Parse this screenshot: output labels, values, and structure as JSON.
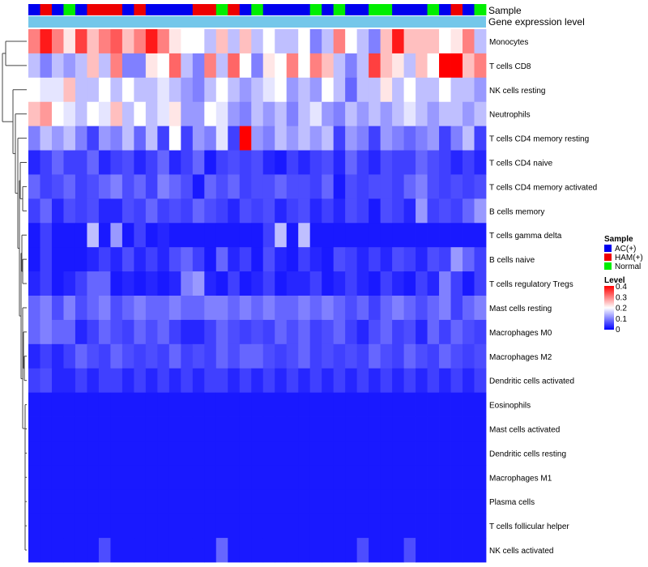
{
  "chart_data": {
    "type": "heatmap",
    "title": "",
    "annotation_tracks": [
      "Sample",
      "Gene expression level"
    ],
    "rows": [
      "Monocytes",
      "T cells CD8",
      "NK cells resting",
      "Neutrophils",
      "T cells CD4 memory resting",
      "T cells CD4 naive",
      "T cells CD4 memory activated",
      "B cells memory",
      "T cells gamma delta",
      "B cells naive",
      "T cells regulatory  Tregs",
      "Mast cells resting",
      "Macrophages M0",
      "Macrophages M2",
      "Dendritic cells activated",
      "Eosinophils",
      "Mast cells activated",
      "Dendritic cells resting",
      "Macrophages M1",
      "Plasma cells",
      "T cells follicular helper",
      "NK cells activated"
    ],
    "samples": [
      "AC(+)",
      "HAM(+)",
      "AC(+)",
      "Normal",
      "AC(+)",
      "HAM(+)",
      "HAM(+)",
      "HAM(+)",
      "AC(+)",
      "HAM(+)",
      "AC(+)",
      "AC(+)",
      "AC(+)",
      "AC(+)",
      "HAM(+)",
      "HAM(+)",
      "Normal",
      "HAM(+)",
      "AC(+)",
      "Normal",
      "AC(+)",
      "AC(+)",
      "AC(+)",
      "AC(+)",
      "Normal",
      "AC(+)",
      "Normal",
      "AC(+)",
      "AC(+)",
      "Normal",
      "Normal",
      "AC(+)",
      "AC(+)",
      "AC(+)",
      "Normal",
      "AC(+)",
      "HAM(+)",
      "AC(+)",
      "Normal"
    ],
    "sample_legend": {
      "title": "Sample",
      "entries": [
        {
          "label": "AC(+)",
          "color": "#0000ee"
        },
        {
          "label": "HAM(+)",
          "color": "#ee0000"
        },
        {
          "label": "Normal",
          "color": "#00ee00"
        }
      ]
    },
    "level_legend": {
      "title": "Level",
      "range": [
        0,
        0.4
      ],
      "ticks": [
        "0.4",
        "0.3",
        "0.2",
        "0.1",
        "0"
      ],
      "colors": [
        "#0000ff",
        "#ffffff",
        "#ff0000"
      ]
    },
    "values": [
      [
        0.3,
        0.38,
        0.3,
        0.22,
        0.35,
        0.25,
        0.3,
        0.33,
        0.25,
        0.3,
        0.38,
        0.3,
        0.22,
        0.2,
        0.2,
        0.15,
        0.25,
        0.15,
        0.25,
        0.15,
        0.2,
        0.15,
        0.15,
        0.2,
        0.1,
        0.15,
        0.3,
        0.2,
        0.15,
        0.1,
        0.25,
        0.38,
        0.25,
        0.25,
        0.25,
        0.2,
        0.22,
        0.3,
        0.15
      ],
      [
        0.15,
        0.1,
        0.15,
        0.12,
        0.15,
        0.25,
        0.15,
        0.3,
        0.1,
        0.1,
        0.22,
        0.2,
        0.32,
        0.15,
        0.1,
        0.3,
        0.15,
        0.32,
        0.2,
        0.1,
        0.22,
        0.2,
        0.3,
        0.2,
        0.3,
        0.25,
        0.15,
        0.1,
        0.15,
        0.35,
        0.25,
        0.22,
        0.15,
        0.25,
        0.2,
        0.4,
        0.4,
        0.25,
        0.3
      ],
      [
        0.2,
        0.18,
        0.18,
        0.25,
        0.15,
        0.15,
        0.2,
        0.15,
        0.2,
        0.15,
        0.15,
        0.18,
        0.15,
        0.12,
        0.1,
        0.15,
        0.2,
        0.15,
        0.12,
        0.15,
        0.18,
        0.2,
        0.12,
        0.15,
        0.12,
        0.2,
        0.15,
        0.08,
        0.15,
        0.15,
        0.22,
        0.15,
        0.2,
        0.15,
        0.15,
        0.2,
        0.15,
        0.15,
        0.12
      ],
      [
        0.25,
        0.28,
        0.2,
        0.18,
        0.15,
        0.2,
        0.18,
        0.25,
        0.15,
        0.2,
        0.15,
        0.18,
        0.22,
        0.12,
        0.12,
        0.2,
        0.18,
        0.12,
        0.1,
        0.15,
        0.12,
        0.15,
        0.1,
        0.15,
        0.18,
        0.12,
        0.1,
        0.15,
        0.12,
        0.15,
        0.12,
        0.15,
        0.18,
        0.15,
        0.12,
        0.15,
        0.15,
        0.12,
        0.15
      ],
      [
        0.1,
        0.15,
        0.12,
        0.15,
        0.1,
        0.05,
        0.12,
        0.1,
        0.15,
        0.08,
        0.15,
        0.05,
        0.2,
        0.05,
        0.12,
        0.1,
        0.18,
        0.05,
        0.4,
        0.12,
        0.1,
        0.15,
        0.12,
        0.15,
        0.12,
        0.15,
        0.05,
        0.12,
        0.1,
        0.05,
        0.12,
        0.1,
        0.08,
        0.1,
        0.12,
        0.05,
        0.1,
        0.15,
        0.05
      ],
      [
        0.03,
        0.05,
        0.08,
        0.05,
        0.05,
        0.08,
        0.03,
        0.05,
        0.06,
        0.03,
        0.05,
        0.08,
        0.03,
        0.05,
        0.08,
        0.02,
        0.05,
        0.06,
        0.05,
        0.06,
        0.03,
        0.02,
        0.05,
        0.03,
        0.05,
        0.06,
        0.03,
        0.08,
        0.05,
        0.03,
        0.06,
        0.05,
        0.05,
        0.08,
        0.06,
        0.05,
        0.03,
        0.05,
        0.03
      ],
      [
        0.08,
        0.05,
        0.06,
        0.08,
        0.05,
        0.06,
        0.08,
        0.1,
        0.06,
        0.08,
        0.05,
        0.1,
        0.08,
        0.06,
        0.02,
        0.08,
        0.06,
        0.08,
        0.05,
        0.06,
        0.06,
        0.08,
        0.06,
        0.06,
        0.05,
        0.08,
        0.02,
        0.06,
        0.05,
        0.06,
        0.06,
        0.05,
        0.08,
        0.1,
        0.06,
        0.05,
        0.06,
        0.05,
        0.06
      ],
      [
        0.05,
        0.08,
        0.03,
        0.06,
        0.05,
        0.06,
        0.03,
        0.03,
        0.06,
        0.05,
        0.08,
        0.05,
        0.06,
        0.05,
        0.08,
        0.06,
        0.05,
        0.03,
        0.06,
        0.05,
        0.06,
        0.03,
        0.05,
        0.06,
        0.03,
        0.05,
        0.03,
        0.06,
        0.05,
        0.02,
        0.06,
        0.05,
        0.03,
        0.12,
        0.05,
        0.06,
        0.05,
        0.08,
        0.12
      ],
      [
        0.02,
        0.05,
        0.02,
        0.02,
        0.02,
        0.15,
        0.02,
        0.12,
        0.02,
        0.05,
        0.02,
        0.03,
        0.02,
        0.02,
        0.02,
        0.02,
        0.02,
        0.02,
        0.02,
        0.02,
        0.05,
        0.15,
        0.02,
        0.15,
        0.02,
        0.02,
        0.02,
        0.02,
        0.02,
        0.02,
        0.02,
        0.02,
        0.02,
        0.02,
        0.02,
        0.02,
        0.02,
        0.02,
        0.02
      ],
      [
        0.02,
        0.05,
        0.02,
        0.02,
        0.02,
        0.03,
        0.05,
        0.03,
        0.06,
        0.03,
        0.05,
        0.03,
        0.06,
        0.08,
        0.05,
        0.02,
        0.08,
        0.03,
        0.05,
        0.02,
        0.06,
        0.03,
        0.02,
        0.05,
        0.03,
        0.02,
        0.06,
        0.05,
        0.03,
        0.05,
        0.03,
        0.06,
        0.05,
        0.03,
        0.06,
        0.05,
        0.12,
        0.08,
        0.05
      ],
      [
        0.03,
        0.05,
        0.02,
        0.03,
        0.05,
        0.08,
        0.08,
        0.02,
        0.03,
        0.02,
        0.03,
        0.02,
        0.03,
        0.1,
        0.12,
        0.03,
        0.02,
        0.05,
        0.02,
        0.03,
        0.05,
        0.02,
        0.03,
        0.03,
        0.05,
        0.02,
        0.03,
        0.05,
        0.03,
        0.02,
        0.05,
        0.03,
        0.02,
        0.05,
        0.03,
        0.1,
        0.05,
        0.02,
        0.05
      ],
      [
        0.08,
        0.1,
        0.06,
        0.1,
        0.06,
        0.08,
        0.1,
        0.06,
        0.08,
        0.1,
        0.08,
        0.08,
        0.1,
        0.08,
        0.08,
        0.1,
        0.1,
        0.08,
        0.1,
        0.08,
        0.1,
        0.08,
        0.08,
        0.1,
        0.08,
        0.1,
        0.08,
        0.06,
        0.08,
        0.05,
        0.08,
        0.1,
        0.08,
        0.06,
        0.08,
        0.1,
        0.05,
        0.08,
        0.1
      ],
      [
        0.08,
        0.1,
        0.08,
        0.08,
        0.03,
        0.05,
        0.08,
        0.06,
        0.05,
        0.08,
        0.06,
        0.08,
        0.05,
        0.03,
        0.03,
        0.05,
        0.08,
        0.06,
        0.05,
        0.06,
        0.05,
        0.08,
        0.06,
        0.08,
        0.05,
        0.06,
        0.08,
        0.05,
        0.03,
        0.06,
        0.08,
        0.05,
        0.06,
        0.03,
        0.08,
        0.05,
        0.08,
        0.06,
        0.05
      ],
      [
        0.03,
        0.05,
        0.03,
        0.05,
        0.08,
        0.06,
        0.05,
        0.08,
        0.06,
        0.05,
        0.06,
        0.05,
        0.08,
        0.05,
        0.06,
        0.05,
        0.08,
        0.06,
        0.08,
        0.08,
        0.06,
        0.05,
        0.06,
        0.08,
        0.05,
        0.06,
        0.05,
        0.06,
        0.05,
        0.08,
        0.06,
        0.05,
        0.08,
        0.06,
        0.05,
        0.08,
        0.06,
        0.05,
        0.06
      ],
      [
        0.05,
        0.06,
        0.03,
        0.03,
        0.05,
        0.03,
        0.05,
        0.05,
        0.03,
        0.05,
        0.03,
        0.05,
        0.03,
        0.05,
        0.03,
        0.05,
        0.05,
        0.03,
        0.05,
        0.03,
        0.05,
        0.03,
        0.05,
        0.03,
        0.05,
        0.03,
        0.05,
        0.03,
        0.05,
        0.03,
        0.05,
        0.03,
        0.05,
        0.03,
        0.05,
        0.03,
        0.05,
        0.03,
        0.05
      ],
      [
        0.02,
        0.02,
        0.02,
        0.02,
        0.02,
        0.02,
        0.02,
        0.02,
        0.02,
        0.02,
        0.02,
        0.02,
        0.02,
        0.02,
        0.02,
        0.02,
        0.02,
        0.02,
        0.02,
        0.02,
        0.02,
        0.02,
        0.02,
        0.02,
        0.02,
        0.02,
        0.02,
        0.02,
        0.02,
        0.02,
        0.02,
        0.02,
        0.02,
        0.02,
        0.02,
        0.02,
        0.02,
        0.02,
        0.02
      ],
      [
        0.02,
        0.02,
        0.02,
        0.02,
        0.02,
        0.02,
        0.02,
        0.02,
        0.02,
        0.02,
        0.02,
        0.02,
        0.02,
        0.02,
        0.02,
        0.02,
        0.02,
        0.02,
        0.02,
        0.02,
        0.02,
        0.02,
        0.02,
        0.02,
        0.02,
        0.02,
        0.02,
        0.02,
        0.02,
        0.02,
        0.02,
        0.02,
        0.02,
        0.02,
        0.02,
        0.02,
        0.02,
        0.02,
        0.02
      ],
      [
        0.02,
        0.02,
        0.02,
        0.02,
        0.02,
        0.02,
        0.02,
        0.02,
        0.02,
        0.02,
        0.02,
        0.02,
        0.02,
        0.02,
        0.02,
        0.02,
        0.02,
        0.02,
        0.02,
        0.02,
        0.02,
        0.02,
        0.02,
        0.02,
        0.02,
        0.02,
        0.02,
        0.02,
        0.02,
        0.02,
        0.02,
        0.02,
        0.02,
        0.02,
        0.02,
        0.02,
        0.02,
        0.02,
        0.02
      ],
      [
        0.02,
        0.02,
        0.02,
        0.02,
        0.02,
        0.02,
        0.02,
        0.02,
        0.02,
        0.02,
        0.02,
        0.02,
        0.02,
        0.02,
        0.02,
        0.02,
        0.02,
        0.02,
        0.02,
        0.02,
        0.02,
        0.02,
        0.02,
        0.02,
        0.02,
        0.02,
        0.02,
        0.02,
        0.02,
        0.02,
        0.02,
        0.02,
        0.02,
        0.02,
        0.02,
        0.02,
        0.02,
        0.02,
        0.02
      ],
      [
        0.02,
        0.02,
        0.02,
        0.02,
        0.02,
        0.02,
        0.02,
        0.02,
        0.02,
        0.02,
        0.02,
        0.02,
        0.02,
        0.02,
        0.02,
        0.02,
        0.02,
        0.02,
        0.02,
        0.02,
        0.02,
        0.02,
        0.02,
        0.02,
        0.02,
        0.02,
        0.02,
        0.02,
        0.02,
        0.02,
        0.02,
        0.02,
        0.02,
        0.02,
        0.02,
        0.02,
        0.02,
        0.02,
        0.02
      ],
      [
        0.02,
        0.02,
        0.02,
        0.02,
        0.02,
        0.02,
        0.02,
        0.02,
        0.02,
        0.02,
        0.02,
        0.02,
        0.02,
        0.02,
        0.02,
        0.02,
        0.02,
        0.02,
        0.02,
        0.02,
        0.02,
        0.02,
        0.02,
        0.02,
        0.02,
        0.02,
        0.02,
        0.02,
        0.02,
        0.02,
        0.02,
        0.02,
        0.02,
        0.02,
        0.02,
        0.02,
        0.02,
        0.02,
        0.02
      ],
      [
        0.02,
        0.02,
        0.02,
        0.02,
        0.02,
        0.02,
        0.06,
        0.02,
        0.02,
        0.02,
        0.02,
        0.02,
        0.02,
        0.02,
        0.02,
        0.02,
        0.08,
        0.02,
        0.02,
        0.02,
        0.02,
        0.02,
        0.02,
        0.02,
        0.02,
        0.02,
        0.02,
        0.02,
        0.06,
        0.02,
        0.02,
        0.02,
        0.06,
        0.02,
        0.02,
        0.02,
        0.02,
        0.02,
        0.02
      ]
    ]
  }
}
